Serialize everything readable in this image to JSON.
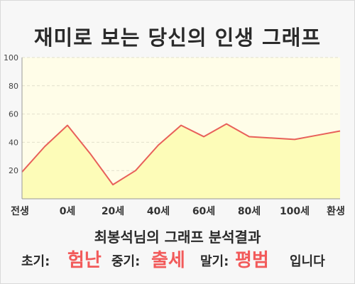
{
  "title": "재미로 보는 당신의 인생 그래프",
  "chart_data": {
    "type": "area",
    "x_tick_labels": [
      "전생",
      "0세",
      "20세",
      "40세",
      "60세",
      "80세",
      "100세",
      "환생"
    ],
    "x": [
      "전생",
      "",
      "0세",
      "",
      "20세",
      "",
      "40세",
      "",
      "60세",
      "",
      "80세",
      "",
      "100세",
      "",
      "환생"
    ],
    "y": [
      19,
      37,
      52,
      32,
      10,
      20,
      38,
      52,
      44,
      53,
      44,
      43,
      42,
      45,
      48
    ],
    "ylim": [
      0,
      100
    ],
    "y_ticks": [
      20,
      40,
      60,
      80,
      100
    ],
    "grid": true,
    "line_color": "#e8605a",
    "fill_color": "#fdfcb8",
    "plot_bg": "#fffde8"
  },
  "result": {
    "heading": "최봉석님의 그래프 분석결과",
    "early_label": "초기:",
    "early_value": "험난",
    "middle_label": "중기:",
    "middle_value": "출세",
    "late_label": "말기:",
    "late_value": "평범",
    "suffix": "입니다"
  }
}
